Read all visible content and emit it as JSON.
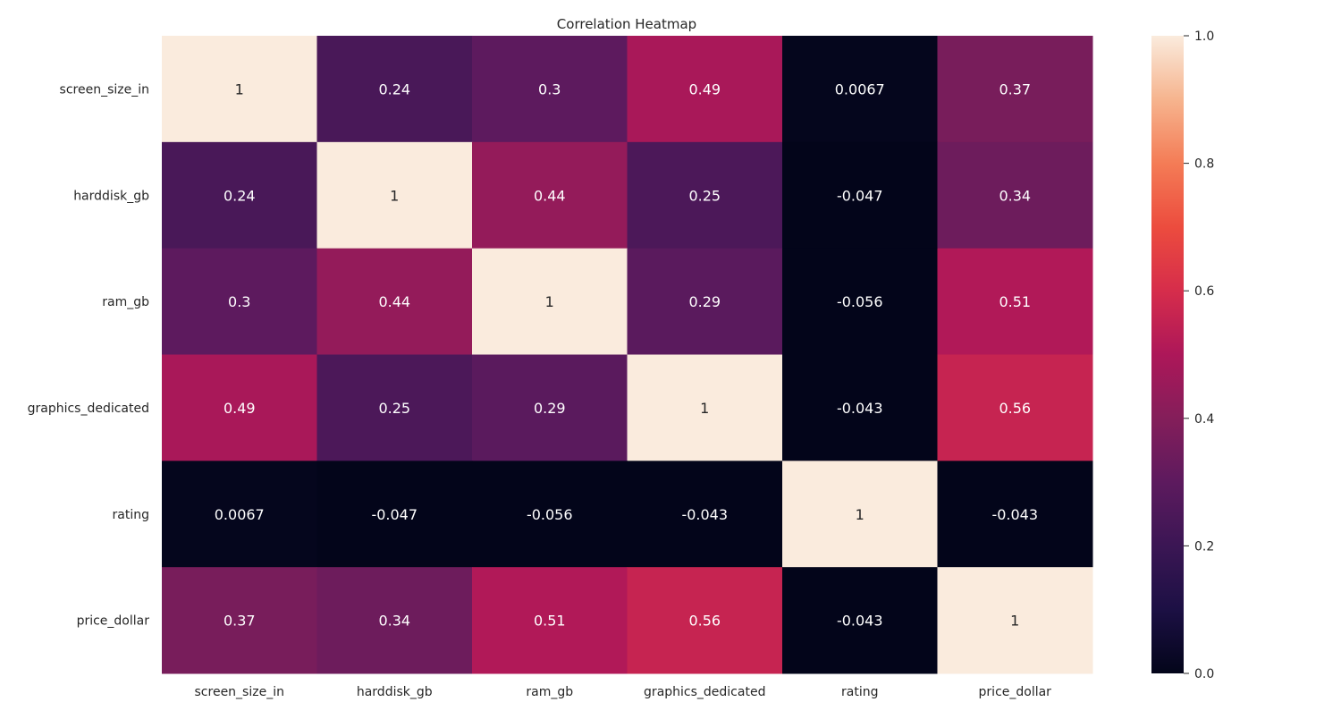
{
  "chart_data": {
    "type": "heatmap",
    "title": "Correlation Heatmap",
    "xlabel": "",
    "ylabel": "",
    "x_labels": [
      "screen_size_in",
      "harddisk_gb",
      "ram_gb",
      "graphics_dedicated",
      "rating",
      "price_dollar"
    ],
    "y_labels": [
      "screen_size_in",
      "harddisk_gb",
      "ram_gb",
      "graphics_dedicated",
      "rating",
      "price_dollar"
    ],
    "values": [
      [
        1,
        0.24,
        0.3,
        0.49,
        0.0067,
        0.37
      ],
      [
        0.24,
        1,
        0.44,
        0.25,
        -0.047,
        0.34
      ],
      [
        0.3,
        0.44,
        1,
        0.29,
        -0.056,
        0.51
      ],
      [
        0.49,
        0.25,
        0.29,
        1,
        -0.043,
        0.56
      ],
      [
        0.0067,
        -0.047,
        -0.056,
        -0.043,
        1,
        -0.043
      ],
      [
        0.37,
        0.34,
        0.51,
        0.56,
        -0.043,
        1
      ]
    ],
    "annotations": [
      [
        "1",
        "0.24",
        "0.3",
        "0.49",
        "0.0067",
        "0.37"
      ],
      [
        "0.24",
        "1",
        "0.44",
        "0.25",
        "-0.047",
        "0.34"
      ],
      [
        "0.3",
        "0.44",
        "1",
        "0.29",
        "-0.056",
        "0.51"
      ],
      [
        "0.49",
        "0.25",
        "0.29",
        "1",
        "-0.043",
        "0.56"
      ],
      [
        "0.0067",
        "-0.047",
        "-0.056",
        "-0.043",
        "1",
        "-0.043"
      ],
      [
        "0.37",
        "0.34",
        "0.51",
        "0.56",
        "-0.043",
        "1"
      ]
    ],
    "colorbar": {
      "colormap": "rocket",
      "vmin": 0.0,
      "vmax": 1.0,
      "ticks": [
        0.0,
        0.2,
        0.4,
        0.6,
        0.8,
        1.0
      ],
      "tick_labels": [
        "0.0",
        "0.2",
        "0.4",
        "0.6",
        "0.8",
        "1.0"
      ]
    },
    "grid": false,
    "legend": "colorbar-right"
  }
}
